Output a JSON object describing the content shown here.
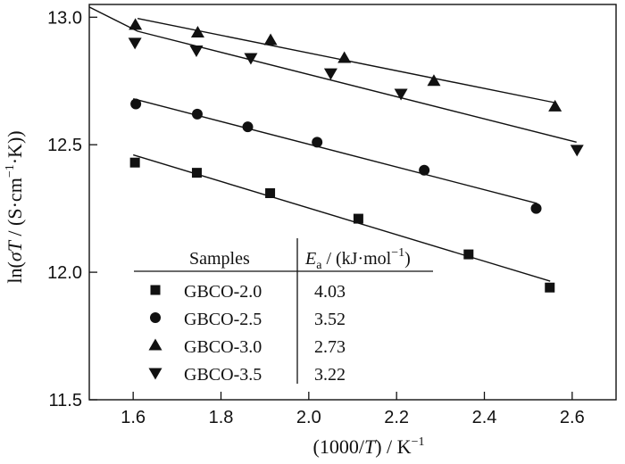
{
  "chart_data": {
    "type": "scatter",
    "xlabel": "(1000/T) / K",
    "xlabel_parts": {
      "pre": "(1000/",
      "var": "T",
      "post": ") / K",
      "sup": "−1"
    },
    "ylabel": "ln(σT / (S·cm⁻¹·K))",
    "ylabel_parts": {
      "pre": "ln(",
      "var": "σT",
      "mid": " / (S·cm",
      "sup": "−1",
      "post": "·K))"
    },
    "xlim": [
      1.5,
      2.7
    ],
    "ylim": [
      11.5,
      13.05
    ],
    "xticks": [
      1.6,
      1.8,
      2.0,
      2.2,
      2.4,
      2.6
    ],
    "xtick_labels": [
      "1.6",
      "1.8",
      "2.0",
      "2.2",
      "2.4",
      "2.6"
    ],
    "yticks": [
      11.5,
      12.0,
      12.5,
      13.0
    ],
    "ytick_labels": [
      "11.5",
      "12.0",
      "12.5",
      "13.0"
    ],
    "grid": false,
    "legend_placement": "lower-left (table)",
    "legend": {
      "header_samples": "Samples",
      "header_ea": {
        "sym": "E",
        "sub": "a",
        "unit": " / (kJ·mol",
        "sup": "−1",
        "close": ")"
      }
    },
    "series": [
      {
        "name": "GBCO-2.0",
        "marker": "square",
        "ea": "4.03",
        "x": [
          1.604,
          1.745,
          1.912,
          2.113,
          2.364,
          2.549
        ],
        "y": [
          12.43,
          12.39,
          12.31,
          12.21,
          12.07,
          11.94
        ],
        "fit": [
          [
            1.6,
            12.46
          ],
          [
            2.55,
            11.965
          ]
        ]
      },
      {
        "name": "GBCO-2.5",
        "marker": "circle",
        "ea": "3.52",
        "x": [
          1.606,
          1.746,
          1.861,
          2.019,
          2.263,
          2.518
        ],
        "y": [
          12.66,
          12.62,
          12.57,
          12.51,
          12.4,
          12.25
        ],
        "fit": [
          [
            1.6,
            12.68
          ],
          [
            2.52,
            12.27
          ]
        ]
      },
      {
        "name": "GBCO-3.0",
        "marker": "triangle-up",
        "ea": "2.73",
        "x": [
          1.605,
          1.747,
          1.913,
          2.081,
          2.285,
          2.561
        ],
        "y": [
          12.97,
          12.94,
          12.91,
          12.84,
          12.75,
          12.65
        ],
        "fit": [
          [
            1.61,
            12.995
          ],
          [
            2.56,
            12.665
          ]
        ]
      },
      {
        "name": "GBCO-3.5",
        "marker": "triangle-down",
        "ea": "3.22",
        "x": [
          1.604,
          1.744,
          1.868,
          2.05,
          2.21,
          2.611
        ],
        "y": [
          12.9,
          12.87,
          12.84,
          12.78,
          12.7,
          12.48
        ],
        "fit": [
          [
            1.5,
            13.04
          ],
          [
            1.61,
            12.945
          ],
          [
            2.61,
            12.51
          ]
        ]
      }
    ]
  }
}
